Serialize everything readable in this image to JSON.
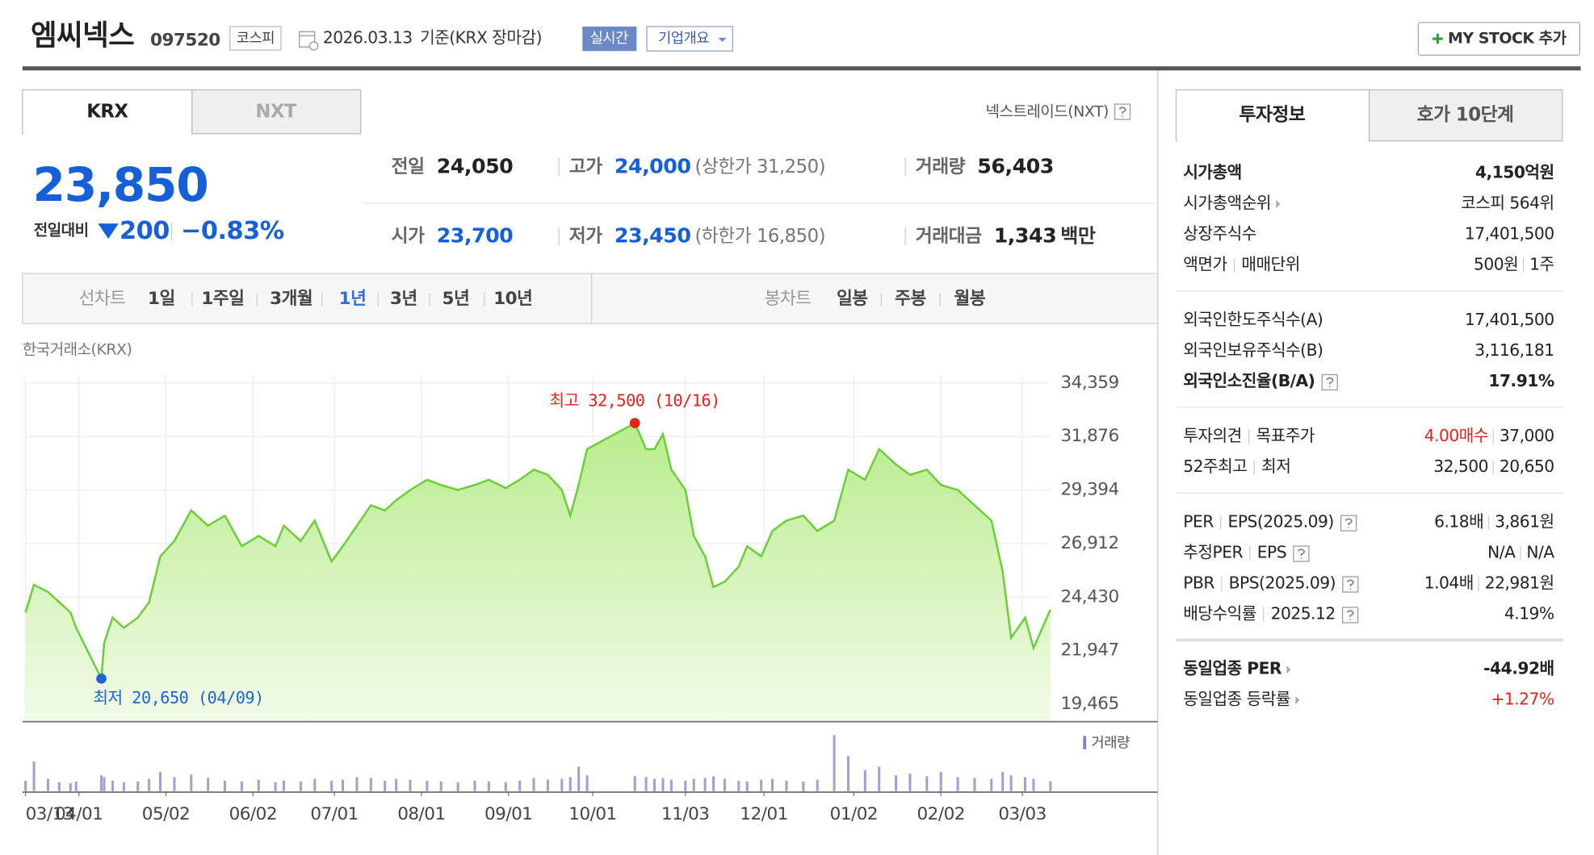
{
  "header": {
    "name": "엠씨넥스",
    "code": "097520",
    "market": "코스피",
    "date": "2026.03.13",
    "basis": "기준(KRX 장마감)",
    "realtime": "실시간",
    "company": "기업개요",
    "mystock": "MY STOCK 추가"
  },
  "market_tabs": {
    "items": [
      "KRX",
      "NXT"
    ],
    "active": 0,
    "link": "넥스트레이드(NXT)"
  },
  "quote": {
    "price": "23,850",
    "change_label": "전일대비",
    "change": "200",
    "change_pct": "−0.83%"
  },
  "stats": [
    {
      "label": "전일",
      "value": "24,050",
      "color": "#222222"
    },
    {
      "label": "고가",
      "value": "24,000",
      "note": "(상한가 31,250)",
      "color": "#1560d8"
    },
    {
      "label": "거래량",
      "value": "56,403",
      "color": "#222222"
    },
    {
      "label": "시가",
      "value": "23,700",
      "color": "#1560d8"
    },
    {
      "label": "저가",
      "value": "23,450",
      "note": "(하한가 16,850)",
      "color": "#1560d8"
    },
    {
      "label": "거래대금",
      "value": "1,343",
      "unit": "백만",
      "color": "#222222"
    }
  ],
  "chart_tabs": {
    "line_label": "선차트",
    "periods": [
      "1일",
      "1주일",
      "3개월",
      "1년",
      "3년",
      "5년",
      "10년"
    ],
    "selected": 3,
    "candle_label": "봉차트",
    "candle_periods": [
      "일봉",
      "주봉",
      "월봉"
    ]
  },
  "chart_data": {
    "type": "area",
    "source": "한국거래소(KRX)",
    "x": [
      0,
      3,
      8,
      12,
      16,
      18,
      27,
      28,
      31,
      35,
      40,
      44,
      48,
      53,
      59,
      65,
      71,
      77,
      83,
      89,
      92,
      98,
      103,
      109,
      113,
      118,
      123,
      128,
      132,
      137,
      143,
      148,
      154,
      160,
      165,
      171,
      176,
      181,
      186,
      191,
      194,
      197,
      200,
      217,
      221,
      224,
      227,
      230,
      235,
      238,
      242,
      245,
      249,
      254,
      257,
      262,
      266,
      271,
      277,
      282,
      288,
      293,
      299,
      304,
      310,
      315,
      321,
      326,
      332,
      338,
      344,
      348,
      351,
      356,
      359,
      365
    ],
    "values": [
      23720,
      25000,
      24670,
      24190,
      23720,
      23010,
      20650,
      22300,
      23480,
      23010,
      23480,
      24190,
      26320,
      27030,
      28450,
      27740,
      28210,
      26790,
      27270,
      26790,
      27740,
      27030,
      27980,
      26080,
      26790,
      27740,
      28690,
      28450,
      28920,
      29400,
      29870,
      29630,
      29400,
      29630,
      29870,
      29490,
      29870,
      30340,
      30100,
      29400,
      28210,
      29630,
      31290,
      32500,
      31290,
      31290,
      31990,
      30340,
      29400,
      27270,
      26320,
      24900,
      25140,
      25850,
      26790,
      26320,
      27500,
      27980,
      28210,
      27500,
      27980,
      30340,
      29870,
      31290,
      30580,
      30100,
      30340,
      29630,
      29400,
      28690,
      27980,
      25610,
      22540,
      23480,
      22070,
      23850
    ],
    "color": "#6ccf3a",
    "volume": {
      "name": "거래량",
      "color": "#a99bd8",
      "values": [
        60000,
        170000,
        70000,
        50000,
        45000,
        55000,
        90000,
        80000,
        60000,
        50000,
        55000,
        70000,
        110000,
        80000,
        95000,
        75000,
        60000,
        55000,
        65000,
        50000,
        60000,
        55000,
        70000,
        60000,
        65000,
        80000,
        75000,
        60000,
        70000,
        65000,
        60000,
        55000,
        50000,
        60000,
        55000,
        50000,
        60000,
        75000,
        65000,
        70000,
        80000,
        140000,
        90000,
        85000,
        80000,
        70000,
        75000,
        65000,
        60000,
        70000,
        75000,
        85000,
        70000,
        60000,
        55000,
        65000,
        70000,
        60000,
        55000,
        65000,
        320000,
        200000,
        120000,
        140000,
        90000,
        100000,
        85000,
        110000,
        80000,
        75000,
        70000,
        110000,
        90000,
        80000,
        70000,
        56403
      ]
    },
    "annotations": [
      {
        "text": "최고 32,500 (10/16)",
        "x": 217,
        "y": 32500,
        "color": "#e8201a",
        "side": "above"
      },
      {
        "text": "최저 20,650 (04/09)",
        "x": 27,
        "y": 20650,
        "color": "#1f62d0",
        "side": "below"
      }
    ],
    "xlim": [
      0,
      365
    ],
    "ylim": [
      18700,
      34700
    ],
    "y2lim": [
      0,
      350000
    ],
    "xticks": [
      {
        "value": 0,
        "label": "03/13"
      },
      {
        "value": 19,
        "label": "04/01"
      },
      {
        "value": 50,
        "label": "05/02"
      },
      {
        "value": 81,
        "label": "06/02"
      },
      {
        "value": 110,
        "label": "07/01"
      },
      {
        "value": 141,
        "label": "08/01"
      },
      {
        "value": 172,
        "label": "09/01"
      },
      {
        "value": 202,
        "label": "10/01"
      },
      {
        "value": 235,
        "label": "11/03"
      },
      {
        "value": 263,
        "label": "12/01"
      },
      {
        "value": 295,
        "label": "01/02"
      },
      {
        "value": 326,
        "label": "02/02"
      },
      {
        "value": 355,
        "label": "03/03"
      }
    ],
    "yticks": [
      {
        "value": 19465,
        "label": "19,465"
      },
      {
        "value": 21947,
        "label": "21,947"
      },
      {
        "value": 24430,
        "label": "24,430"
      },
      {
        "value": 26912,
        "label": "26,912"
      },
      {
        "value": 29394,
        "label": "29,394"
      },
      {
        "value": 31876,
        "label": "31,876"
      },
      {
        "value": 34359,
        "label": "34,359"
      }
    ],
    "grid": true
  },
  "side": {
    "tabs": [
      "투자정보",
      "호가 10단계"
    ],
    "active": 0,
    "groups": [
      [
        {
          "labels": [
            "시가총액"
          ],
          "values": [
            "4,150억원"
          ],
          "bold": true
        },
        {
          "labels": [
            "시가총액순위"
          ],
          "icon": "arrow",
          "values": [
            "코스피 564위"
          ]
        },
        {
          "labels": [
            "상장주식수"
          ],
          "values": [
            "17,401,500"
          ]
        },
        {
          "labels": [
            "액면가",
            "매매단위"
          ],
          "values": [
            "500원",
            "1주"
          ]
        }
      ],
      [
        {
          "labels": [
            "외국인한도주식수(A)"
          ],
          "values": [
            "17,401,500"
          ]
        },
        {
          "labels": [
            "외국인보유주식수(B)"
          ],
          "values": [
            "3,116,181"
          ]
        },
        {
          "labels": [
            "외국인소진율(B/A)"
          ],
          "icon": "info",
          "values": [
            "17.91%"
          ],
          "bold": true
        }
      ],
      [
        {
          "labels": [
            "투자의견",
            "목표주가"
          ],
          "values": [
            "4.00매수",
            "37,000"
          ],
          "first_color": "#e8201a"
        },
        {
          "labels": [
            "52주최고",
            "최저"
          ],
          "values": [
            "32,500",
            "20,650"
          ]
        }
      ],
      [
        {
          "labels": [
            "PER",
            "EPS(2025.09)"
          ],
          "icon": "info",
          "values": [
            "6.18배",
            "3,861원"
          ]
        },
        {
          "labels": [
            "추정PER",
            "EPS"
          ],
          "icon": "info",
          "values": [
            "N/A",
            "N/A"
          ]
        },
        {
          "labels": [
            "PBR",
            "BPS(2025.09)"
          ],
          "icon": "info",
          "values": [
            "1.04배",
            "22,981원"
          ]
        },
        {
          "labels": [
            "배당수익률",
            "2025.12"
          ],
          "icon": "info",
          "values": [
            "4.19%"
          ]
        }
      ],
      [
        {
          "labels": [
            "동일업종 PER"
          ],
          "icon": "arrow",
          "values": [
            "-44.92배"
          ],
          "bold": true
        },
        {
          "labels": [
            "동일업종 등락률"
          ],
          "icon": "arrow",
          "values": [
            "+1.27%"
          ],
          "first_color": "#e8201a"
        }
      ]
    ]
  }
}
